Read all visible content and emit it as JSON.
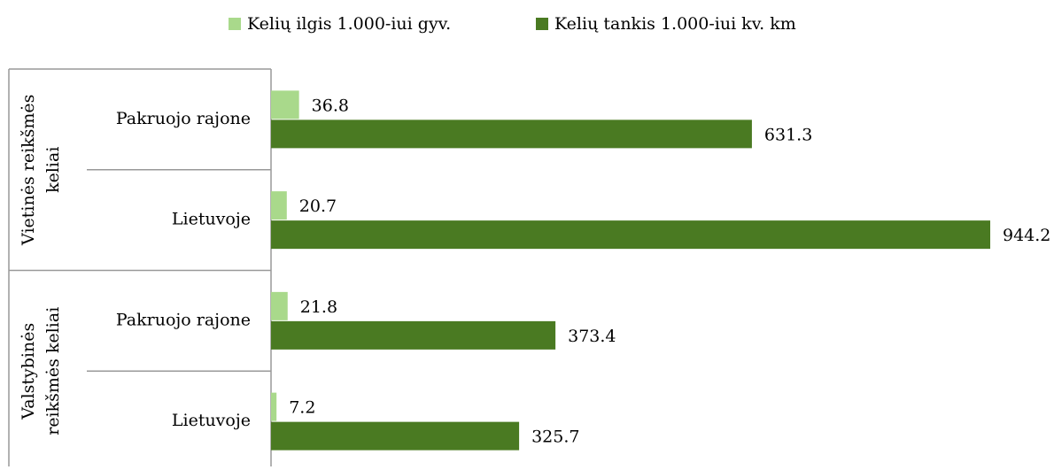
{
  "chart_data": {
    "type": "bar",
    "orientation": "horizontal",
    "groups": [
      {
        "label": [
          "Vietinės reikšmės",
          "keliai"
        ]
      },
      {
        "label": [
          "Valstybinės",
          "reikšmės keliai"
        ]
      }
    ],
    "categories": [
      "Pakruojo rajone",
      "Lietuvoje",
      "Pakruojo rajone",
      "Lietuvoje"
    ],
    "series": [
      {
        "name": "Kelių ilgis 1.000-iui gyv.",
        "color": "#a9d98b",
        "values": [
          36.8,
          20.7,
          21.8,
          7.2
        ]
      },
      {
        "name": "Kelių tankis 1.000-iui kv. km",
        "color": "#4a7a22",
        "values": [
          631.3,
          944.2,
          373.4,
          325.7
        ]
      }
    ],
    "xlim": [
      0,
      1000
    ],
    "legend": "top"
  }
}
